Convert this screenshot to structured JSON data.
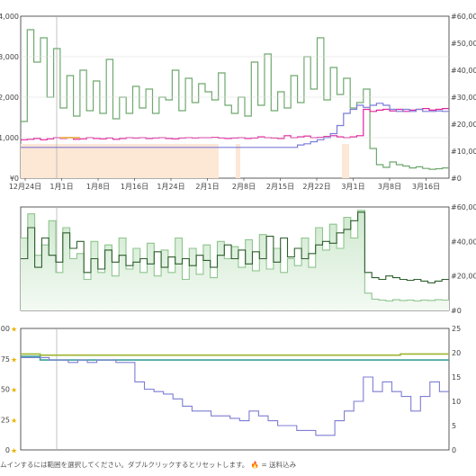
{
  "chart_data": [
    {
      "type": "line",
      "name": "price-chart",
      "x_ticks": [
        "12月24日",
        "1月1日",
        "1月8日",
        "1月16日",
        "1月24日",
        "2月1日",
        "2月8日",
        "2月15日",
        "2月22日",
        "3月1日",
        "3月8日",
        "3月16日"
      ],
      "y_left_ticks": [
        "¥0",
        "¥1,000",
        "¥2,000",
        "¥3,000",
        "¥4,000"
      ],
      "y_right_ticks": [
        "#0",
        "#10,000",
        "#20,000",
        "#30,000",
        "#40,000",
        "#50,000",
        "#60,000"
      ],
      "ylim_left": [
        0,
        4000
      ],
      "ylim_right": [
        0,
        60000
      ],
      "series": [
        {
          "color": "#6fa86f",
          "axis": "right",
          "values": [
            21000,
            55000,
            43000,
            52000,
            30000,
            48000,
            26000,
            38000,
            23000,
            40000,
            25000,
            36000,
            24000,
            44000,
            22000,
            30000,
            24000,
            34000,
            26000,
            33000,
            24000,
            30000,
            29000,
            40000,
            25000,
            37000,
            28000,
            35000,
            32000,
            29000,
            39000,
            27000,
            24000,
            30000,
            23000,
            43000,
            27000,
            46000,
            25000,
            32000,
            26000,
            38000,
            28000,
            45000,
            33000,
            52000,
            29000,
            41000,
            31000,
            37000,
            26000,
            28000,
            33000,
            11000,
            5000,
            4000,
            6000,
            5000,
            4500,
            3800,
            4200,
            3600,
            3300,
            3500,
            3800
          ]
        },
        {
          "color": "#e0249c",
          "axis": "left",
          "values": [
            950,
            960,
            980,
            950,
            970,
            1000,
            980,
            990,
            960,
            970,
            1000,
            980,
            970,
            990,
            960,
            980,
            1000,
            990,
            1000,
            980,
            990,
            1000,
            980,
            970,
            990,
            1000,
            990,
            1000,
            1000,
            1010,
            990,
            980,
            990,
            1000,
            980,
            990,
            1020,
            1000,
            990,
            980,
            1050,
            1000,
            1020,
            1040,
            1000,
            1010,
            1030,
            1050,
            1020,
            1000,
            1020,
            1050,
            1700,
            1650,
            1680,
            1700,
            1660,
            1700,
            1650,
            1680,
            1700,
            1720,
            1680,
            1700,
            1720
          ]
        },
        {
          "color": "#7b7bd8",
          "axis": "left",
          "values": [
            760,
            760,
            760,
            760,
            760,
            760,
            760,
            760,
            760,
            760,
            760,
            760,
            760,
            760,
            760,
            760,
            760,
            760,
            760,
            760,
            760,
            760,
            760,
            760,
            760,
            760,
            760,
            760,
            760,
            760,
            760,
            760,
            760,
            760,
            760,
            760,
            760,
            760,
            760,
            760,
            760,
            760,
            820,
            850,
            900,
            950,
            1000,
            1100,
            1300,
            1600,
            1700,
            1800,
            1750,
            1800,
            1850,
            1800,
            1700,
            1650,
            1700,
            1650,
            1700,
            1650,
            1650,
            1660,
            1650
          ]
        },
        {
          "color": "#f2a93b",
          "axis": "left",
          "values": [
            null,
            null,
            null,
            null,
            null,
            null,
            1000,
            1000,
            1000,
            null,
            null,
            null,
            null,
            null,
            null,
            null,
            null,
            null,
            null,
            null,
            null,
            null,
            null,
            null,
            null,
            null,
            null,
            null,
            null,
            null,
            null,
            null,
            null,
            null,
            null,
            null,
            null,
            null,
            null,
            null,
            null,
            null,
            null,
            null,
            null,
            null,
            null,
            null,
            null,
            null,
            null,
            null,
            null,
            null,
            null,
            null,
            null,
            null,
            null,
            null,
            null,
            null,
            null,
            null,
            null
          ]
        }
      ]
    },
    {
      "type": "area",
      "name": "rank-chart",
      "y_right_ticks": [
        "#0",
        "#20,000",
        "#40,000",
        "#60,000"
      ],
      "ylim_right": [
        0,
        60000
      ],
      "series": [
        {
          "color": "#2e5e2e",
          "values": [
            30000,
            48000,
            25000,
            42000,
            32000,
            28000,
            45000,
            36000,
            40000,
            22000,
            30000,
            24000,
            35000,
            28000,
            32000,
            26000,
            28000,
            30000,
            27000,
            34000,
            25000,
            31000,
            27000,
            30000,
            26000,
            32000,
            29000,
            25000,
            32000,
            38000,
            30000,
            35000,
            27000,
            34000,
            30000,
            43000,
            28000,
            42000,
            31000,
            36000,
            30000,
            33000,
            38000,
            40000,
            39000,
            45000,
            47000,
            52000,
            57000,
            22000,
            19000,
            18000,
            20000,
            19000,
            18000,
            17500,
            18000,
            17000,
            16000,
            17000,
            18000
          ]
        },
        {
          "color": "#8ec58e",
          "values": [
            42000,
            56000,
            32000,
            38000,
            52000,
            22000,
            48000,
            30000,
            33000,
            18000,
            40000,
            22000,
            38000,
            20000,
            42000,
            24000,
            36000,
            22000,
            39000,
            20000,
            35000,
            22000,
            42000,
            18000,
            36000,
            21000,
            38000,
            19000,
            40000,
            30000,
            37000,
            25000,
            41000,
            23000,
            44000,
            24000,
            36000,
            22000,
            30000,
            26000,
            42000,
            25000,
            48000,
            35000,
            50000,
            36000,
            54000,
            42000,
            58000,
            10000,
            6500,
            6000,
            5500,
            6200,
            5800,
            6000,
            5500,
            6000,
            5800,
            6200,
            6000
          ]
        }
      ]
    },
    {
      "type": "line",
      "name": "review-chart",
      "y_left_ticks": [
        "0",
        "25",
        "50",
        "75",
        "100"
      ],
      "y_right_ticks": [
        "0",
        "5",
        "10",
        "15",
        "20",
        "25"
      ],
      "ylim_left": [
        0,
        100
      ],
      "ylim_right": [
        0,
        25
      ],
      "series": [
        {
          "color": "#9db52f",
          "axis": "left",
          "values": [
            79,
            79,
            78,
            78,
            78,
            78,
            78,
            78,
            78,
            78,
            78,
            78,
            78,
            78,
            78,
            78,
            78,
            78,
            78,
            78,
            78,
            78,
            78,
            78,
            78,
            78,
            78,
            78,
            78,
            78,
            78,
            78,
            78,
            78,
            78,
            78,
            78,
            78,
            78,
            79,
            79,
            79,
            79,
            79
          ]
        },
        {
          "color": "#3aa098",
          "axis": "left",
          "values": [
            77,
            77,
            74,
            74,
            74,
            74,
            74,
            74,
            74,
            74,
            74,
            74,
            74,
            74,
            74,
            74,
            74,
            74,
            74,
            74,
            74,
            74,
            74,
            74,
            74,
            74,
            74,
            74,
            74,
            74,
            74,
            74,
            74,
            74,
            74,
            74,
            74,
            74,
            74,
            74,
            74,
            74,
            74,
            74
          ]
        },
        {
          "color": "#7d7dd4",
          "axis": "right",
          "values": [
            19,
            19,
            19,
            18.5,
            18.5,
            18,
            18.5,
            18,
            18.5,
            18.5,
            18,
            18,
            14,
            12.5,
            12,
            11.5,
            10.5,
            9,
            8,
            8,
            7,
            7,
            6.5,
            6,
            8,
            7,
            6,
            5,
            5,
            4,
            4,
            3,
            3,
            6,
            8,
            10,
            15,
            12,
            14,
            12,
            11,
            8,
            11,
            14,
            12
          ]
        }
      ]
    }
  ],
  "footer": {
    "hint_text": "ムインするには範囲を選択してください。ダブルクリックするとリセットします。",
    "flame_icon": "flame-icon",
    "shipping_label": "= 送料込み"
  }
}
